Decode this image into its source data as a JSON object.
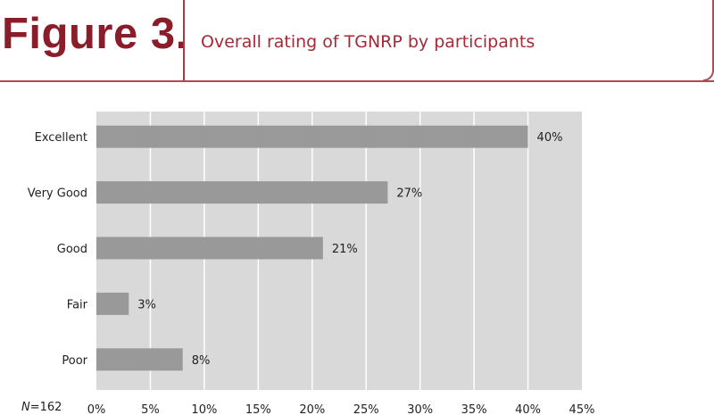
{
  "header": {
    "label": "Figure 3.",
    "title": "Overall rating of TGNRP by participants"
  },
  "note": {
    "prefix": "N",
    "value": "=162"
  },
  "colors": {
    "accent": "#8b1d2a",
    "plot_background": "#d9d9d9",
    "bar": "#999999",
    "gridline": "#ffffff"
  },
  "chart_data": {
    "type": "bar",
    "orientation": "horizontal",
    "title": "Overall rating of TGNRP by participants",
    "categories": [
      "Excellent",
      "Very Good",
      "Good",
      "Fair",
      "Poor"
    ],
    "values": [
      40,
      27,
      21,
      3,
      8
    ],
    "value_labels": [
      "40%",
      "27%",
      "21%",
      "3%",
      "8%"
    ],
    "xlim": [
      0,
      45
    ],
    "x_ticks": [
      "0%",
      "5%",
      "10%",
      "15%",
      "20%",
      "25%",
      "30%",
      "35%",
      "40%",
      "45%"
    ],
    "xlabel": "",
    "ylabel": "",
    "grid": true
  }
}
